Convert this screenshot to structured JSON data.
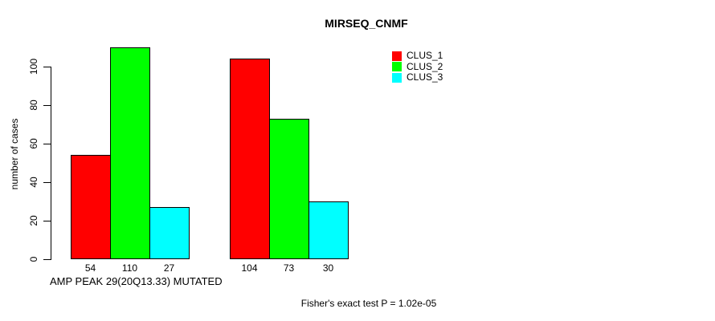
{
  "chart_data": {
    "type": "bar",
    "title": "MIRSEQ_CNMF",
    "ylabel": "number of cases",
    "xlabel": "AMP PEAK 29(20Q13.33) MUTATED",
    "ylim": [
      0,
      110
    ],
    "yticks": [
      0,
      20,
      40,
      60,
      80,
      100
    ],
    "grid": false,
    "legend_position": "top-right",
    "groups": [
      "AMP PEAK 29(20Q13.33) MUTATED",
      ""
    ],
    "series": [
      {
        "name": "CLUS_1",
        "color": "#ff0000",
        "values": [
          54,
          104
        ]
      },
      {
        "name": "CLUS_2",
        "color": "#00ff00",
        "values": [
          110,
          73
        ]
      },
      {
        "name": "CLUS_3",
        "color": "#00ffff",
        "values": [
          27,
          30
        ]
      }
    ],
    "bar_value_labels": [
      54,
      110,
      27,
      104,
      73,
      30
    ],
    "annotation": "Fisher's exact test P = 1.02e-05"
  }
}
